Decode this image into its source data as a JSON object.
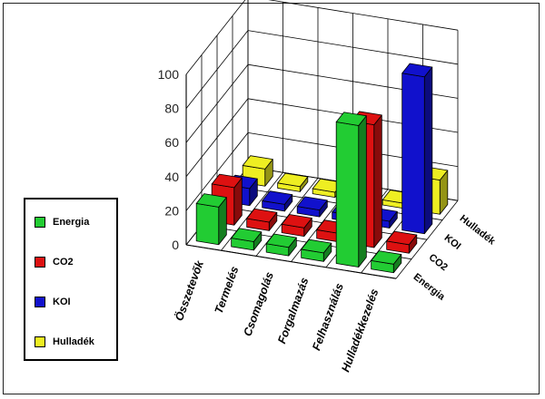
{
  "chart_data": {
    "type": "bar",
    "title": "",
    "xlabel": "",
    "ylabel": "",
    "ylim": [
      0,
      100
    ],
    "yticks": [
      0,
      20,
      40,
      60,
      80,
      100
    ],
    "grid": true,
    "legend_position": "left",
    "categories": [
      "Összetevők",
      "Termelés",
      "Csomagolás",
      "Forgalmazás",
      "Felhasználás",
      "Hulladékkezelés"
    ],
    "series": [
      {
        "name": "Energia",
        "color": "#22cc33",
        "values": [
          22,
          5,
          5,
          5,
          83,
          5
        ]
      },
      {
        "name": "CO2",
        "color": "#dd1111",
        "values": [
          22,
          5,
          5,
          5,
          72,
          5
        ]
      },
      {
        "name": "KOI",
        "color": "#1111cc",
        "values": [
          10,
          4,
          4,
          4,
          4,
          92
        ]
      },
      {
        "name": "Hulladék",
        "color": "#eeee22",
        "values": [
          10,
          3,
          3,
          3,
          3,
          20
        ]
      }
    ]
  },
  "legend": {
    "items": [
      {
        "label": "Energia",
        "color": "#22cc33"
      },
      {
        "label": "CO2",
        "color": "#dd1111"
      },
      {
        "label": "KOI",
        "color": "#1111cc"
      },
      {
        "label": "Hulladék",
        "color": "#eeee22"
      }
    ]
  }
}
